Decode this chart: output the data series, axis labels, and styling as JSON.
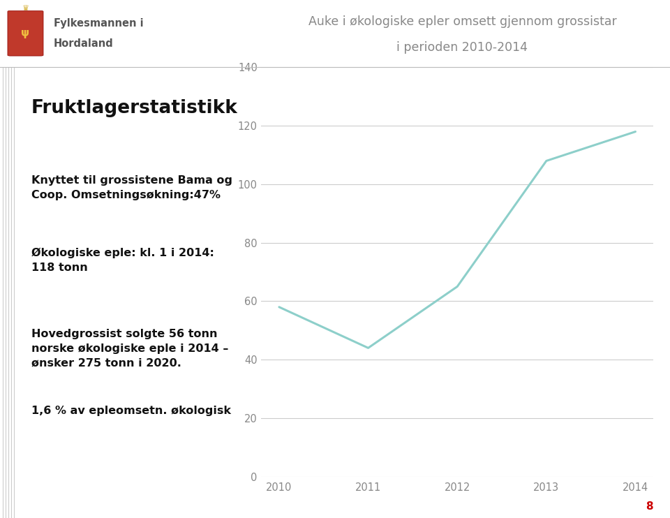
{
  "title_line1": "Auke i økologiske epler omsett gjennom grossistar",
  "title_line2": "i perioden 2010-2014",
  "x_values": [
    2010,
    2011,
    2012,
    2013,
    2014
  ],
  "y_values": [
    58,
    44,
    65,
    108,
    118
  ],
  "line_color": "#8DCFCA",
  "line_width": 2.2,
  "ylim": [
    0,
    140
  ],
  "yticks": [
    0,
    20,
    40,
    60,
    80,
    100,
    120,
    140
  ],
  "xticks": [
    2010,
    2011,
    2012,
    2013,
    2014
  ],
  "grid_color": "#CCCCCC",
  "background_color": "#FFFFFF",
  "left_title": "Fruktlagerstatistikk",
  "left_texts": [
    "Knyttet til grossistene Bama og\nCoop. Omsetningsøkning:47%",
    "Økologiske eple: kl. 1 i 2014:\n118 tonn",
    "Hovedgrossist solgte 56 tonn\nnorske økologiske eple i 2014 –\nønsker 275 tonn i 2020.",
    "1,6 % av epleomsetn. økologisk"
  ],
  "text_color": "#111111",
  "tick_color": "#888888",
  "title_color": "#888888",
  "page_number": "8",
  "logo_text_color": "#555555",
  "left_title_color": "#111111",
  "accent_lines_color": "#AAAAAA"
}
